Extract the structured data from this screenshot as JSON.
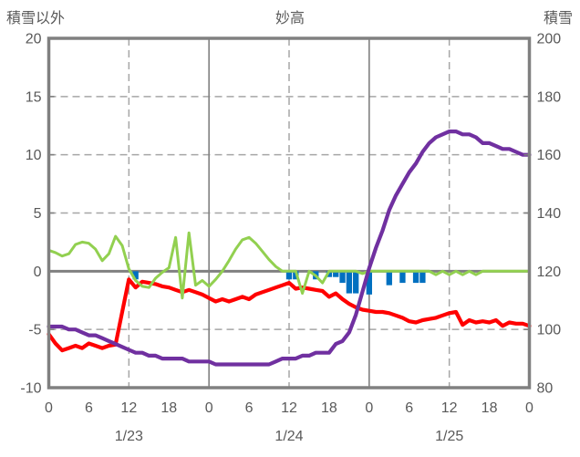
{
  "title": "妙高",
  "left_axis": {
    "title": "積雪以外",
    "ticks": [
      20,
      15,
      10,
      5,
      0,
      -5,
      -10
    ],
    "min": -10,
    "max": 20,
    "grid_dashed": [
      15,
      10,
      5,
      -5
    ],
    "grid_solid": [
      0
    ]
  },
  "right_axis": {
    "title": "積雪",
    "ticks": [
      200,
      180,
      160,
      140,
      120,
      100,
      80
    ],
    "min": 80,
    "max": 200
  },
  "x_axis": {
    "min": 0,
    "max": 72,
    "tick_hours": [
      0,
      6,
      12,
      18,
      24,
      30,
      36,
      42,
      48,
      54,
      60,
      66,
      72
    ],
    "tick_labels": [
      "0",
      "6",
      "12",
      "18",
      "0",
      "6",
      "12",
      "18",
      "0",
      "6",
      "12",
      "18",
      "0"
    ],
    "grid_dashed_hours": [
      12,
      36,
      60
    ],
    "grid_solid_hours": [
      24,
      48
    ],
    "date_labels": [
      {
        "label": "1/23",
        "hour": 12
      },
      {
        "label": "1/24",
        "hour": 36
      },
      {
        "label": "1/25",
        "hour": 60
      }
    ]
  },
  "colors": {
    "frame": "#808080",
    "grid": "#a6a6a6",
    "zero_line": "#808080",
    "text": "#595959",
    "green_line": "#92d050",
    "red_line": "#ff0000",
    "purple_line": "#7030a0",
    "blue_bars": "#0070c0"
  },
  "chart_data": {
    "type": "combo line+bar",
    "title": "妙高",
    "x_unit": "hours from 1/23 00:00 to 1/26 00:00, hourly points",
    "xlim": [
      0,
      72
    ],
    "ylim_left": [
      -10,
      20
    ],
    "ylim_right": [
      80,
      200
    ],
    "legend": "none shown",
    "grid": "dashed at 12:00 verticals and every 5 units horizontals; solid at day boundaries and zero line",
    "series": [
      {
        "name": "green-line",
        "axis": "left",
        "color_key": "green_line",
        "stroke_width": 3,
        "values": [
          1.8,
          1.6,
          1.3,
          1.5,
          2.3,
          2.5,
          2.4,
          1.9,
          0.9,
          1.5,
          3.0,
          2.2,
          0.2,
          -0.8,
          -1.3,
          -1.4,
          -0.6,
          -0.1,
          0.3,
          2.9,
          -2.3,
          3.3,
          -1.2,
          -0.8,
          -1.3,
          -0.7,
          0.0,
          0.9,
          1.9,
          2.7,
          2.9,
          2.4,
          1.7,
          1.0,
          0.4,
          0.0,
          0.0,
          0.0,
          -1.9,
          0.0,
          -0.4,
          -1.0,
          0.0,
          0.0,
          0.0,
          0.0,
          0.0,
          -0.2,
          0.0,
          0.0,
          0.0,
          0.0,
          0.0,
          0.0,
          0.0,
          0.0,
          0.0,
          0.0,
          -0.3,
          0.0,
          -0.3,
          0.0,
          -0.3,
          0.0,
          -0.3,
          0.0,
          0.0,
          0.0,
          0.0,
          0.0,
          0.0,
          0.0,
          0.0
        ]
      },
      {
        "name": "red-line",
        "axis": "left",
        "color_key": "red_line",
        "stroke_width": 4.2,
        "values": [
          -5.4,
          -6.2,
          -6.8,
          -6.6,
          -6.4,
          -6.6,
          -6.2,
          -6.4,
          -6.6,
          -6.4,
          -6.3,
          -3.5,
          -0.7,
          -1.4,
          -0.9,
          -1.0,
          -1.1,
          -1.3,
          -1.4,
          -1.6,
          -1.8,
          -1.6,
          -1.8,
          -2.0,
          -2.3,
          -2.6,
          -2.4,
          -2.6,
          -2.4,
          -2.2,
          -2.4,
          -2.0,
          -1.8,
          -1.6,
          -1.4,
          -1.2,
          -1.0,
          -1.5,
          -1.4,
          -1.5,
          -1.6,
          -1.7,
          -2.2,
          -1.9,
          -2.4,
          -2.8,
          -3.1,
          -3.3,
          -3.4,
          -3.5,
          -3.5,
          -3.6,
          -3.8,
          -4.0,
          -4.3,
          -4.4,
          -4.2,
          -4.1,
          -4.0,
          -3.8,
          -3.6,
          -3.5,
          -4.6,
          -4.2,
          -4.4,
          -4.3,
          -4.4,
          -4.2,
          -4.7,
          -4.4,
          -4.5,
          -4.5,
          -4.7
        ]
      },
      {
        "name": "snow-depth-purple",
        "axis": "right",
        "color_key": "purple_line",
        "stroke_width": 4.2,
        "values": [
          101,
          101,
          101,
          100,
          100,
          99,
          98,
          98,
          97,
          96,
          95,
          94,
          93,
          92,
          92,
          91,
          91,
          90,
          90,
          90,
          90,
          89,
          89,
          89,
          89,
          88,
          88,
          88,
          88,
          88,
          88,
          88,
          88,
          88,
          89,
          90,
          90,
          90,
          91,
          91,
          92,
          92,
          92,
          95,
          96,
          99,
          105,
          113,
          121,
          128,
          134,
          141,
          146,
          150,
          154,
          157,
          161,
          164,
          166,
          167,
          168,
          168,
          167,
          167,
          166,
          164,
          164,
          163,
          162,
          162,
          161,
          160,
          160
        ]
      }
    ],
    "bars": {
      "name": "blue-bars",
      "axis": "left",
      "color_key": "blue_bars",
      "bar_width_hours": 1,
      "points": [
        {
          "hour": 13,
          "value": -0.7
        },
        {
          "hour": 36,
          "value": -0.7
        },
        {
          "hour": 37,
          "value": -0.7
        },
        {
          "hour": 40,
          "value": -0.7
        },
        {
          "hour": 42,
          "value": -0.5
        },
        {
          "hour": 43,
          "value": -0.5
        },
        {
          "hour": 44,
          "value": -1.0
        },
        {
          "hour": 45,
          "value": -1.9
        },
        {
          "hour": 46,
          "value": -1.9
        },
        {
          "hour": 48,
          "value": -2.0
        },
        {
          "hour": 51,
          "value": -1.2
        },
        {
          "hour": 53,
          "value": -1.0
        },
        {
          "hour": 55,
          "value": -1.0
        },
        {
          "hour": 56,
          "value": -1.0
        }
      ]
    }
  }
}
